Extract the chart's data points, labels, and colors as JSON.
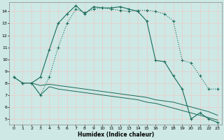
{
  "xlabel": "Humidex (Indice chaleur)",
  "bg_color": "#cde8e5",
  "grid_color": "#e8d0cc",
  "line_color": "#1a6b5a",
  "xlim": [
    -0.5,
    23.5
  ],
  "ylim": [
    4.5,
    14.8
  ],
  "yticks": [
    5,
    6,
    7,
    8,
    9,
    10,
    11,
    12,
    13,
    14
  ],
  "xticks": [
    0,
    1,
    2,
    3,
    4,
    5,
    6,
    7,
    8,
    9,
    10,
    11,
    12,
    13,
    14,
    15,
    16,
    17,
    18,
    19,
    20,
    21,
    22,
    23
  ],
  "curve1_x": [
    0,
    1,
    2,
    3,
    4,
    5,
    6,
    7,
    8,
    9,
    10,
    11,
    12,
    13,
    14,
    15,
    16,
    17,
    18,
    19,
    20,
    21,
    22,
    23
  ],
  "curve1_y": [
    8.5,
    8.0,
    8.0,
    8.5,
    10.8,
    13.0,
    13.8,
    14.5,
    13.8,
    14.4,
    14.3,
    14.3,
    14.4,
    14.2,
    14.0,
    13.2,
    9.9,
    9.8,
    8.6,
    7.5,
    5.0,
    5.5,
    5.0,
    4.7
  ],
  "curve2_x": [
    0,
    1,
    2,
    3,
    4,
    5,
    6,
    7,
    8,
    9,
    10,
    11,
    12,
    13,
    14,
    15,
    16,
    17,
    18,
    19,
    20,
    21,
    22,
    23
  ],
  "curve2_y": [
    8.5,
    8.0,
    8.0,
    7.0,
    8.5,
    11.0,
    13.0,
    14.2,
    13.9,
    14.2,
    14.3,
    14.2,
    14.1,
    14.0,
    14.1,
    14.1,
    14.0,
    13.8,
    13.2,
    9.9,
    9.7,
    8.6,
    7.5,
    7.5
  ],
  "curve3_x": [
    2,
    3,
    4,
    5,
    6,
    7,
    8,
    9,
    10,
    11,
    12,
    13,
    14,
    15,
    16,
    17,
    18,
    19,
    20,
    21,
    22,
    23
  ],
  "curve3_y": [
    8.0,
    7.8,
    7.9,
    7.8,
    7.7,
    7.6,
    7.5,
    7.4,
    7.3,
    7.2,
    7.1,
    7.0,
    6.9,
    6.8,
    6.6,
    6.5,
    6.4,
    6.2,
    6.0,
    5.8,
    5.6,
    5.3
  ],
  "curve4_x": [
    2,
    3,
    4,
    5,
    6,
    7,
    8,
    9,
    10,
    11,
    12,
    13,
    14,
    15,
    16,
    17,
    18,
    19,
    20,
    21,
    22,
    23
  ],
  "curve4_y": [
    8.0,
    7.0,
    7.7,
    7.5,
    7.4,
    7.3,
    7.2,
    7.1,
    7.0,
    6.9,
    6.8,
    6.7,
    6.6,
    6.4,
    6.3,
    6.1,
    5.9,
    5.7,
    5.5,
    5.3,
    5.1,
    4.9
  ],
  "xlabel_fontsize": 5.5,
  "tick_fontsize": 4.5
}
